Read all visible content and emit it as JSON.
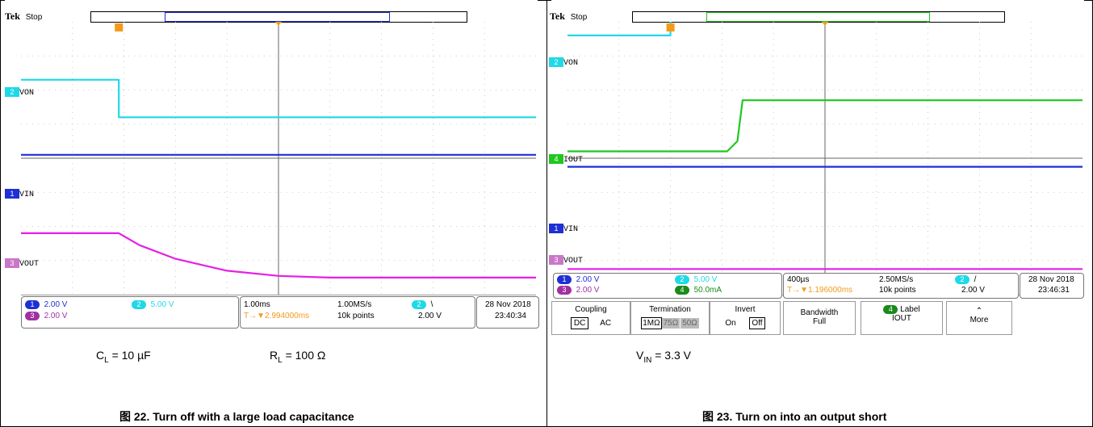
{
  "colors": {
    "ch1": "#1f2fd6",
    "ch2": "#1fd9e8",
    "ch3": "#e61fe6",
    "ch4": "#1fc71f",
    "trigger": "#f39a1a"
  },
  "left": {
    "tek_logo": "Tek",
    "status": "Stop",
    "channels": [
      {
        "id": "ch2",
        "badge": "2",
        "name": "VON"
      },
      {
        "id": "ch1",
        "badge": "1",
        "name": "VIN"
      },
      {
        "id": "ch3",
        "badge": "3",
        "name": "VOUT"
      }
    ],
    "readout": {
      "ch1_badge": "1",
      "ch1_scale": "2.00 V",
      "ch2_badge": "2",
      "ch2_scale": "5.00 V",
      "ch3_badge": "3",
      "ch3_scale": "2.00 V",
      "timebase": "1.00ms",
      "sample_rate": "1.00MS/s",
      "trigger_pos": "2.994000ms",
      "record": "10k points",
      "trig_ch": "2",
      "trig_slope": "\\",
      "trig_level": "2.00 V",
      "date": "28 Nov 2018",
      "time": "23:40:34"
    },
    "caption_cl": "C",
    "caption_cl_sub": "L",
    "caption_cl_val": " = 10 µF",
    "caption_rl": "R",
    "caption_rl_sub": "L",
    "caption_rl_val": " = 100 Ω",
    "figure": "图 22. Turn off with a large load capacitance"
  },
  "right": {
    "tek_logo": "Tek",
    "status": "Stop",
    "channels": [
      {
        "id": "ch2",
        "badge": "2",
        "name": "VON"
      },
      {
        "id": "ch4",
        "badge": "4",
        "name": "IOUT"
      },
      {
        "id": "ch1",
        "badge": "1",
        "name": "VIN"
      },
      {
        "id": "ch3",
        "badge": "3",
        "name": "VOUT"
      }
    ],
    "readout": {
      "ch1_badge": "1",
      "ch1_scale": "2.00 V",
      "ch2_badge": "2",
      "ch2_scale": "5.00 V",
      "ch3_badge": "3",
      "ch3_scale": "2.00 V",
      "ch4_badge": "4",
      "ch4_scale": "50.0mA",
      "timebase": "400µs",
      "sample_rate": "2.50MS/s",
      "trigger_pos": "1.196000ms",
      "record": "10k points",
      "trig_ch": "2",
      "trig_slope": "/",
      "trig_level": "2.00 V",
      "date": "28 Nov 2018",
      "time": "23:46:31"
    },
    "menu": {
      "coupling_title": "Coupling",
      "coupling_dc": "DC",
      "coupling_ac": "AC",
      "term_title": "Termination",
      "term_1m": "1MΩ",
      "term_75": "75Ω",
      "term_50": "50Ω",
      "invert_title": "Invert",
      "invert_on": "On",
      "invert_off": "Off",
      "bw_title": "Bandwidth",
      "bw_val": "Full",
      "label_badge": "4",
      "label_title": "Label",
      "label_val": "IOUT",
      "more": "More"
    },
    "caption_vin": "V",
    "caption_vin_sub": "IN",
    "caption_vin_val": " = 3.3 V",
    "figure": "图 23. Turn on into an output short"
  },
  "chart_data": [
    {
      "type": "line",
      "title": "",
      "x_divisions": 10,
      "y_divisions": 8,
      "timebase_per_div": "1.00ms",
      "series": [
        {
          "name": "VON",
          "channel": 2,
          "x": [
            0,
            1.9,
            1.9,
            10
          ],
          "y": [
            6.3,
            6.3,
            5.2,
            5.2
          ]
        },
        {
          "name": "VIN",
          "channel": 1,
          "x": [
            0,
            10
          ],
          "y": [
            4.1,
            4.1
          ]
        },
        {
          "name": "VOUT",
          "channel": 3,
          "x": [
            0,
            1.9,
            2.3,
            3,
            4,
            5,
            6,
            10
          ],
          "y": [
            1.8,
            1.8,
            1.45,
            1.05,
            0.7,
            0.55,
            0.5,
            0.5
          ]
        }
      ]
    },
    {
      "type": "line",
      "title": "",
      "x_divisions": 10,
      "y_divisions": 8,
      "timebase_per_div": "400µs",
      "series": [
        {
          "name": "VON",
          "channel": 2,
          "x": [
            0,
            2,
            2,
            10
          ],
          "y": [
            7.6,
            7.6,
            8.1,
            8.1
          ]
        },
        {
          "name": "IOUT",
          "channel": 4,
          "x": [
            0,
            3.1,
            3.3,
            3.4,
            10
          ],
          "y": [
            4.2,
            4.2,
            4.5,
            5.7,
            5.7
          ]
        },
        {
          "name": "VIN",
          "channel": 1,
          "x": [
            0,
            10
          ],
          "y": [
            3.75,
            3.75
          ]
        },
        {
          "name": "VOUT",
          "channel": 3,
          "x": [
            0,
            10
          ],
          "y": [
            0.75,
            0.75
          ]
        }
      ]
    }
  ]
}
